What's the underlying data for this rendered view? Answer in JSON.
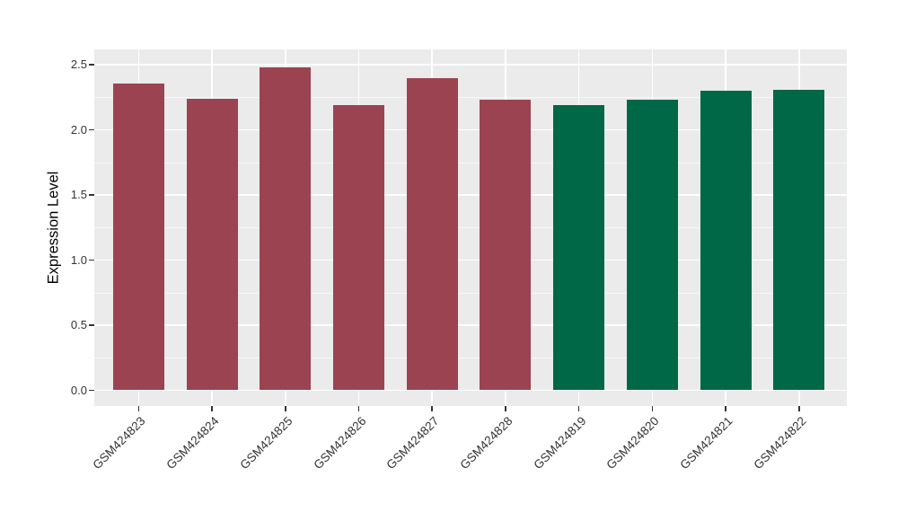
{
  "figure": {
    "background": "#FFFFFF",
    "panel_background": "#EBEBEB"
  },
  "chart_data": {
    "type": "bar",
    "title": "",
    "xlabel": "",
    "ylabel": "Expression Level",
    "categories": [
      "GSM424823",
      "GSM424824",
      "GSM424825",
      "GSM424826",
      "GSM424827",
      "GSM424828",
      "GSM424819",
      "GSM424820",
      "GSM424821",
      "GSM424822"
    ],
    "values": [
      2.36,
      2.24,
      2.48,
      2.19,
      2.4,
      2.23,
      2.19,
      2.23,
      2.3,
      2.31
    ],
    "bar_colors": [
      "#9C4351",
      "#9C4351",
      "#9C4351",
      "#9C4351",
      "#9C4351",
      "#9C4351",
      "#006847",
      "#006847",
      "#006847",
      "#006847"
    ],
    "group_colors": {
      "left_group": "#9C4351",
      "right_group": "#006847"
    },
    "yticks": [
      0.0,
      0.5,
      1.0,
      1.5,
      2.0,
      2.5
    ],
    "ytick_labels": [
      "0.0",
      "0.5",
      "1.0",
      "1.5",
      "2.0",
      "2.5"
    ],
    "ytick_minor": [
      0.25,
      0.75,
      1.25,
      1.75,
      2.25
    ],
    "ylim": [
      0,
      2.5
    ],
    "ylim_expanded": [
      -0.12,
      2.62
    ],
    "grid": "on",
    "legend": "none",
    "grid_major_color": "#FFFFFF",
    "grid_minor_color": "#F5F5F5",
    "axis_tick_color": "#333333",
    "axis_text_color": "#333333",
    "x_label_rotation_deg": 45
  }
}
